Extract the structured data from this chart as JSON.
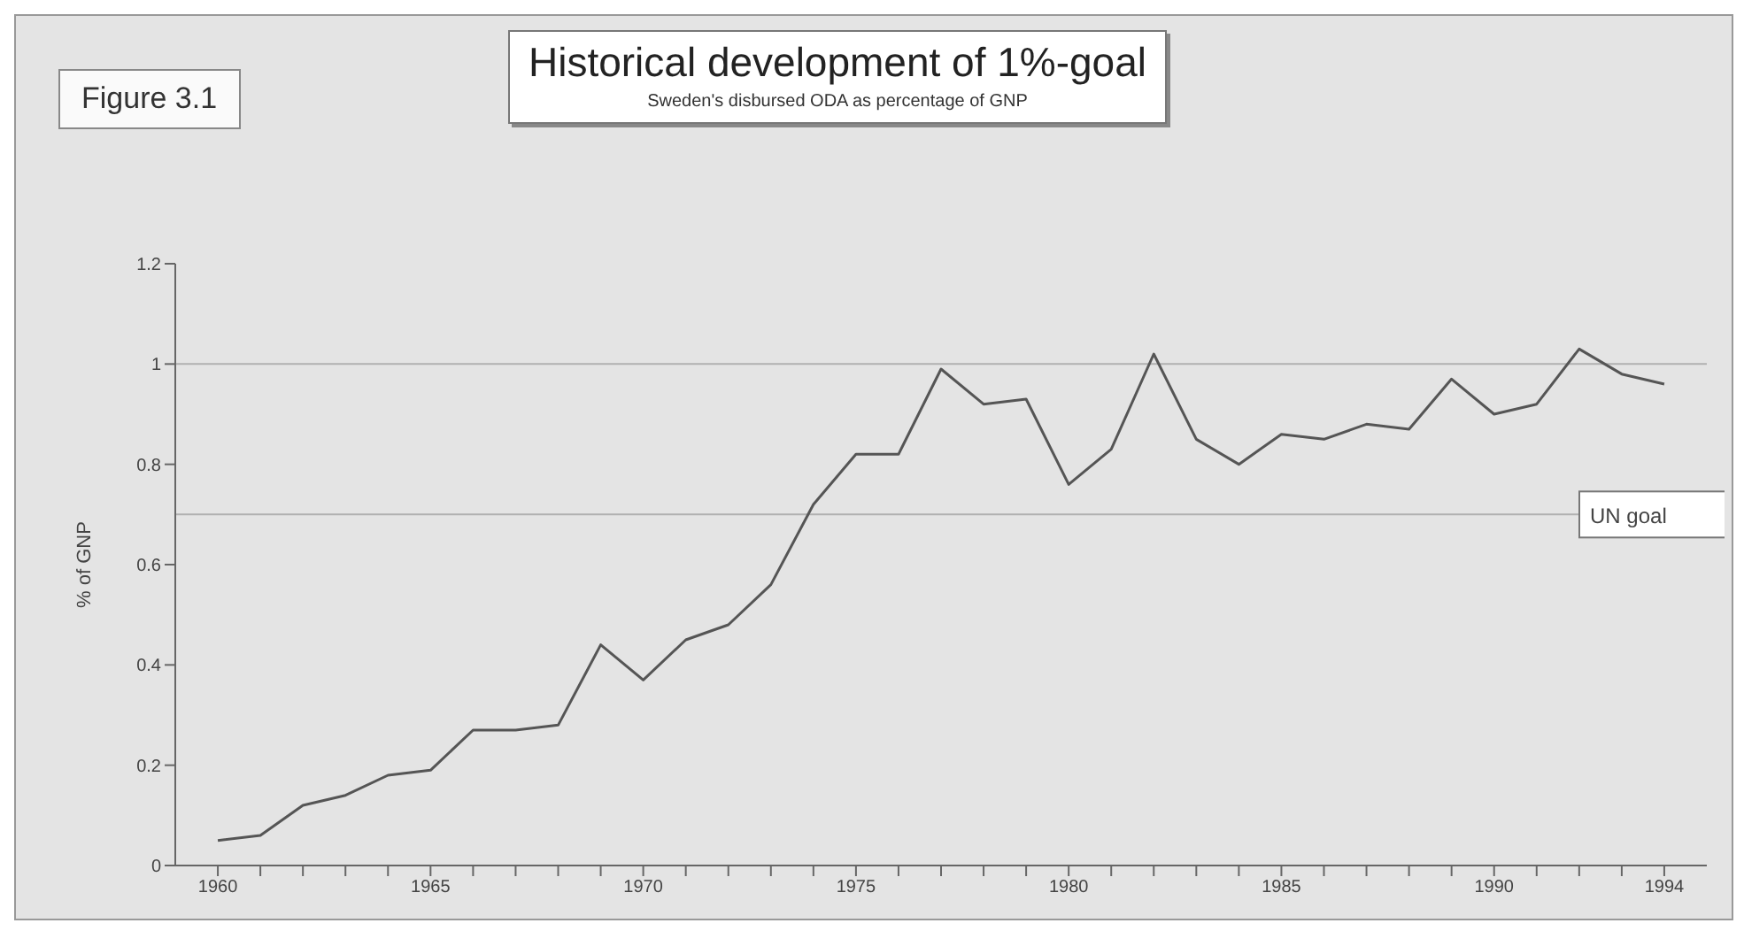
{
  "chart_data": {
    "type": "line",
    "title": "Historical development of 1%-goal",
    "subtitle": "Sweden's disbursed ODA as percentage of GNP",
    "ylabel": "% of GNP",
    "annotations": [
      "Figure 3.1"
    ],
    "x": [
      1960,
      1961,
      1962,
      1963,
      1964,
      1965,
      1966,
      1967,
      1968,
      1969,
      1970,
      1971,
      1972,
      1973,
      1974,
      1975,
      1976,
      1977,
      1978,
      1979,
      1980,
      1981,
      1982,
      1983,
      1984,
      1985,
      1986,
      1987,
      1988,
      1989,
      1990,
      1991,
      1992,
      1993,
      1994
    ],
    "series": [
      {
        "color": "#555555",
        "values": [
          0.05,
          0.06,
          0.12,
          0.14,
          0.18,
          0.19,
          0.27,
          0.27,
          0.28,
          0.44,
          0.37,
          0.45,
          0.48,
          0.56,
          0.72,
          0.82,
          0.82,
          0.99,
          0.92,
          0.93,
          0.76,
          0.83,
          1.02,
          0.85,
          0.8,
          0.86,
          0.85,
          0.88,
          0.87,
          0.97,
          0.9,
          0.92,
          1.03,
          0.98,
          0.96
        ]
      }
    ],
    "xlim": [
      1959,
      1995
    ],
    "xticks": [
      1960,
      {
        "value": 1961,
        "label": null
      },
      {
        "value": 1962,
        "label": null
      },
      {
        "value": 1963,
        "label": null
      },
      {
        "value": 1964,
        "label": null
      },
      1965,
      {
        "value": 1966,
        "label": null
      },
      {
        "value": 1967,
        "label": null
      },
      {
        "value": 1968,
        "label": null
      },
      {
        "value": 1969,
        "label": null
      },
      1970,
      {
        "value": 1971,
        "label": null
      },
      {
        "value": 1972,
        "label": null
      },
      {
        "value": 1973,
        "label": null
      },
      {
        "value": 1974,
        "label": null
      },
      1975,
      {
        "value": 1976,
        "label": null
      },
      {
        "value": 1977,
        "label": null
      },
      {
        "value": 1978,
        "label": null
      },
      {
        "value": 1979,
        "label": null
      },
      1980,
      {
        "value": 1981,
        "label": null
      },
      {
        "value": 1982,
        "label": null
      },
      {
        "value": 1983,
        "label": null
      },
      {
        "value": 1984,
        "label": null
      },
      1985,
      {
        "value": 1986,
        "label": null
      },
      {
        "value": 1987,
        "label": null
      },
      {
        "value": 1988,
        "label": null
      },
      {
        "value": 1989,
        "label": null
      },
      1990,
      {
        "value": 1991,
        "label": null
      },
      {
        "value": 1992,
        "label": null
      },
      {
        "value": 1993,
        "label": null
      },
      1994
    ],
    "ylim": [
      0,
      1.2
    ],
    "yticks": [
      0,
      0.2,
      0.4,
      0.6,
      0.8,
      1,
      1.2
    ],
    "ref_lines": [
      {
        "axis": "y",
        "value": 1,
        "color": "#b0b0b0"
      },
      {
        "axis": "y",
        "value": 0.7,
        "label": "UN goal",
        "color": "#b0b0b0"
      }
    ],
    "marker": "none",
    "line_style": "solid"
  }
}
